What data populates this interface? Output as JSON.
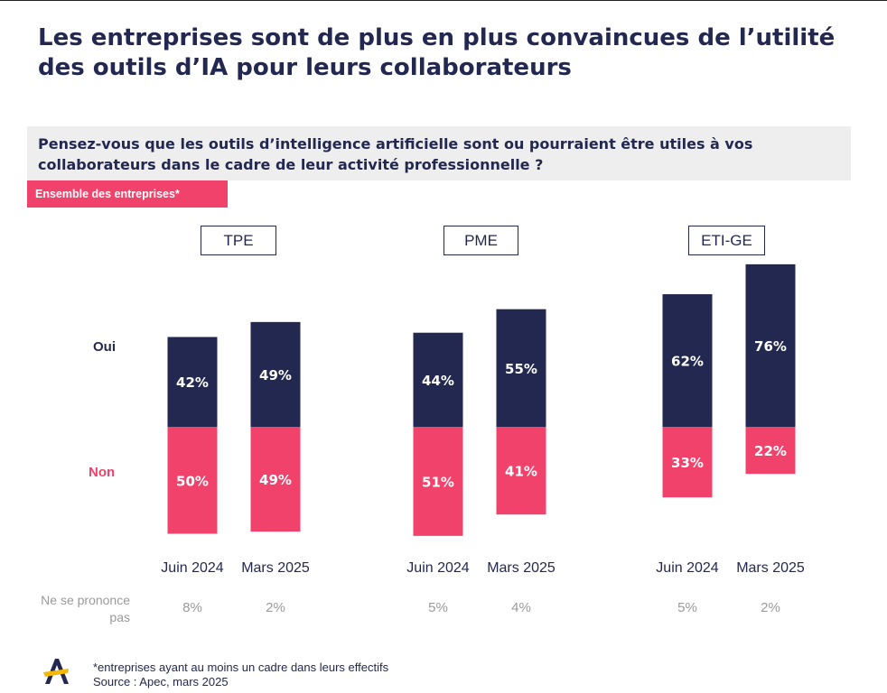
{
  "title_line1": "Les entreprises sont de plus en plus convaincues de l’utilité",
  "title_line2": "des outils d’IA pour leurs collaborateurs",
  "question_line1": "Pensez-vous que les outils d’intelligence artificielle sont ou pourraient être utiles à vos",
  "question_line2": "collaborateurs dans le cadre de leur activité professionnelle ?",
  "badge": "Ensemble des entreprises*",
  "row_labels": {
    "oui": "Oui",
    "non": "Non"
  },
  "nsp_label_line1": "Ne se prononce",
  "nsp_label_line2": "pas",
  "footnote": "*entreprises ayant au moins un cadre dans leurs effectifs",
  "source": "Source : Apec, mars 2025",
  "colors": {
    "navy": "#232850",
    "pink": "#f0426a",
    "grey": "#9a9a9a"
  },
  "chart_data": {
    "type": "bar",
    "stacked": "diverging",
    "unit": "%",
    "groups": [
      {
        "name": "TPE",
        "categories": [
          "Juin 2024",
          "Mars 2025"
        ],
        "series": [
          {
            "name": "Oui",
            "values": [
              42,
              49
            ]
          },
          {
            "name": "Non",
            "values": [
              50,
              49
            ]
          },
          {
            "name": "Ne se prononce pas",
            "values": [
              8,
              2
            ]
          }
        ]
      },
      {
        "name": "PME",
        "categories": [
          "Juin 2024",
          "Mars 2025"
        ],
        "series": [
          {
            "name": "Oui",
            "values": [
              44,
              55
            ]
          },
          {
            "name": "Non",
            "values": [
              51,
              41
            ]
          },
          {
            "name": "Ne se prononce pas",
            "values": [
              5,
              4
            ]
          }
        ]
      },
      {
        "name": "ETI-GE",
        "categories": [
          "Juin 2024",
          "Mars 2025"
        ],
        "series": [
          {
            "name": "Oui",
            "values": [
              62,
              76
            ]
          },
          {
            "name": "Non",
            "values": [
              33,
              22
            ]
          },
          {
            "name": "Ne se prononce pas",
            "values": [
              5,
              2
            ]
          }
        ]
      }
    ]
  }
}
